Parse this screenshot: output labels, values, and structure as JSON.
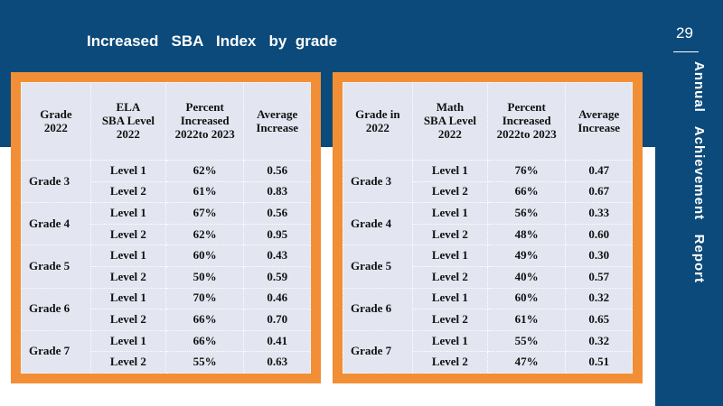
{
  "title": "Increased   SBA   Index   by  grade",
  "page_number": "29",
  "side_label": "Annual   Achievement   Report",
  "colors": {
    "navy": "#0b4a7a",
    "orange": "#f28f36",
    "table_bg": "#e3e6f0"
  },
  "ela_table": {
    "headers": [
      [
        "Grade",
        "2022"
      ],
      [
        "ELA",
        "SBA Level",
        "2022"
      ],
      [
        "Percent",
        "Increased",
        "2022to   2023"
      ],
      [
        "Average",
        "Increase"
      ]
    ],
    "groups": [
      {
        "grade": "Grade 3",
        "rows": [
          {
            "level": "Level 1",
            "percent": "62%",
            "avg": "0.56"
          },
          {
            "level": "Level 2",
            "percent": "61%",
            "avg": "0.83"
          }
        ]
      },
      {
        "grade": "Grade 4",
        "rows": [
          {
            "level": "Level 1",
            "percent": "67%",
            "avg": "0.56"
          },
          {
            "level": "Level 2",
            "percent": "62%",
            "avg": "0.95"
          }
        ]
      },
      {
        "grade": "Grade 5",
        "rows": [
          {
            "level": "Level 1",
            "percent": "60%",
            "avg": "0.43"
          },
          {
            "level": "Level 2",
            "percent": "50%",
            "avg": "0.59"
          }
        ]
      },
      {
        "grade": "Grade 6",
        "rows": [
          {
            "level": "Level 1",
            "percent": "70%",
            "avg": "0.46"
          },
          {
            "level": "Level 2",
            "percent": "66%",
            "avg": "0.70"
          }
        ]
      },
      {
        "grade": "Grade 7",
        "rows": [
          {
            "level": "Level 1",
            "percent": "66%",
            "avg": "0.41"
          },
          {
            "level": "Level 2",
            "percent": "55%",
            "avg": "0.63"
          }
        ]
      }
    ]
  },
  "math_table": {
    "headers": [
      [
        "Grade in",
        "2022"
      ],
      [
        "Math",
        "SBA Level",
        "2022"
      ],
      [
        "Percent",
        "Increased",
        "2022to   2023"
      ],
      [
        "Average",
        "Increase"
      ]
    ],
    "groups": [
      {
        "grade": "Grade 3",
        "rows": [
          {
            "level": "Level 1",
            "percent": "76%",
            "avg": "0.47"
          },
          {
            "level": "Level 2",
            "percent": "66%",
            "avg": "0.67"
          }
        ]
      },
      {
        "grade": "Grade 4",
        "rows": [
          {
            "level": "Level 1",
            "percent": "56%",
            "avg": "0.33"
          },
          {
            "level": "Level 2",
            "percent": "48%",
            "avg": "0.60"
          }
        ]
      },
      {
        "grade": "Grade 5",
        "rows": [
          {
            "level": "Level 1",
            "percent": "49%",
            "avg": "0.30"
          },
          {
            "level": "Level 2",
            "percent": "40%",
            "avg": "0.57"
          }
        ]
      },
      {
        "grade": "Grade 6",
        "rows": [
          {
            "level": "Level 1",
            "percent": "60%",
            "avg": "0.32"
          },
          {
            "level": "Level 2",
            "percent": "61%",
            "avg": "0.65"
          }
        ]
      },
      {
        "grade": "Grade 7",
        "rows": [
          {
            "level": "Level 1",
            "percent": "55%",
            "avg": "0.32"
          },
          {
            "level": "Level 2",
            "percent": "47%",
            "avg": "0.51"
          }
        ]
      }
    ]
  }
}
